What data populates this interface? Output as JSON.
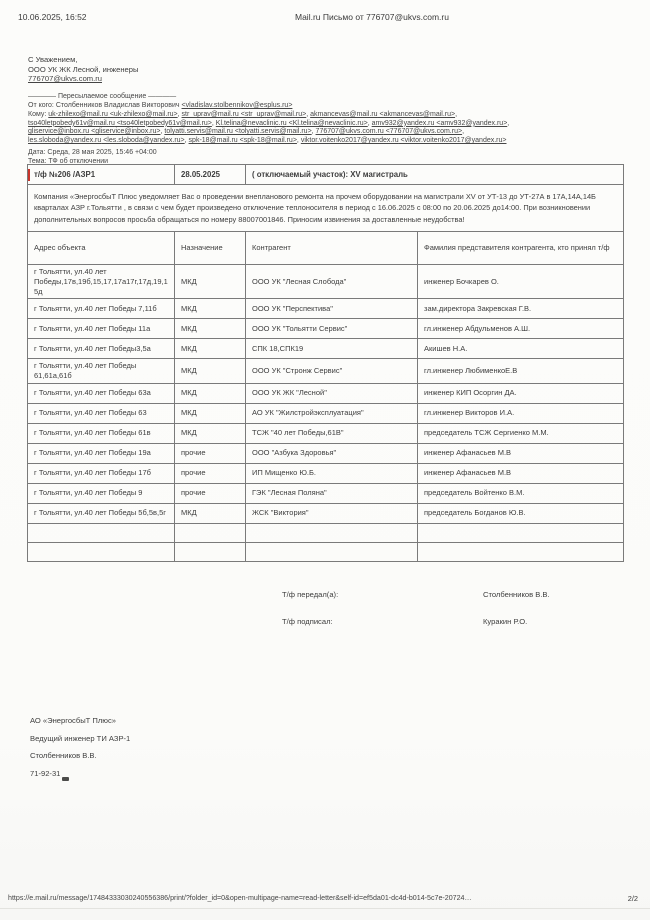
{
  "header": {
    "timestamp": "10.06.2025, 16:52",
    "title": "Mail.ru Письмо от 776707@ukvs.com.ru"
  },
  "sender_block": {
    "line1": "С Уважением,",
    "line2": "ООО УК ЖК Лесной, инженеры",
    "email": "776707@ukvs.com.ru"
  },
  "forward": {
    "divider": "———— Пересылаемое сообщение ————",
    "from_label": "От кого:",
    "from_name": "Столбенников Владислав Викторович",
    "from_email": "<vladislav.stolbennikov@esplus.ru>",
    "to_label": "Кому:",
    "recipients": [
      "uk-zhilexo@mail.ru",
      "str_uprav@mail.ru",
      "akmancevas@mail.ru",
      "tso40letpobedy61v@mail.ru",
      "Kl.telina@nevaclinic.ru",
      "amv932@yandex.ru",
      "gliservice@inbox.ru",
      "tolyatti.servis@mail.ru",
      "776707@ukvs.com.ru",
      "les.sloboda@yandex.ru",
      "spk-18@mail.ru",
      "viktor.voitenko2017@yandex.ru"
    ],
    "date_line": "Дата: Среда, 28 мая 2025, 15:46 +04:00",
    "subject_line": "Тема: ТФ об отключении"
  },
  "table": {
    "tf_number": "т/ф  №206 /АЗР1",
    "tf_date": "28.05.2025",
    "tf_section": "( отключаемый участок): XV магистраль",
    "notice": "Компания «ЭнергосбыТ Плюс уведомляет Вас о проведении  внепланового ремонта на прочем оборудовании  на магистрали XV от УТ-13 до УТ-27А в 17А,14А,14Б кварталах АЗР г.Тольятти , в связи с чем будет произведено отключение теплоносителя  в период с 16.06.2025 с 08:00 по 20.06.2025 до14:00. При возникновении дополнительных вопросов просьба обращаться по номеру 88007001846. Приносим извинения за доставленные неудобства!",
    "columns": [
      "Адрес объекта",
      "Назначение",
      "Контрагент",
      "Фамилия представителя контрагента, кто принял т/ф"
    ],
    "rows": [
      [
        "г Тольятти, ул.40 лет Победы,17в,19б,15,17,17а17г,17д,19,15д",
        "МКД",
        "ООО УК \"Лесная Слобода\"",
        "инженер Бочкарев О."
      ],
      [
        "г Тольятти, ул.40 лет Победы 7,11б",
        "МКД",
        "ООО УК \"Перспектива\"",
        "зам.директора Закревская Г.В."
      ],
      [
        "г Тольятти, ул.40 лет Победы 11а",
        "МКД",
        "ООО УК \"Тольятти Сервис\"",
        "гл.инженер Абдульменов А.Ш."
      ],
      [
        "г Тольятти, ул.40 лет Победы3,5а",
        "МКД",
        "СПК 18,СПК19",
        "Акишев Н.А."
      ],
      [
        "г Тольятти, ул.40 лет Победы 61,61а,61б",
        "МКД",
        "ООО УК \"Стронж Сервис\"",
        "гл.инженер ЛюбименкоЕ.В"
      ],
      [
        "г Тольятти, ул.40 лет Победы 63а",
        "МКД",
        "ООО УК ЖК \"Лесной\"",
        "инженер КИП Осоргин ДА."
      ],
      [
        "г Тольятти, ул.40 лет Победы 63",
        "МКД",
        "АО УК \"Жилстройэксплуатация\"",
        "гл.инженер Викторов И.А."
      ],
      [
        "г Тольятти, ул.40 лет Победы 61в",
        "МКД",
        "ТСЖ \"40 лет Победы,61В\"",
        "председатель ТСЖ Сергиенко М.М."
      ],
      [
        "г Тольятти, ул.40 лет Победы 19а",
        "прочие",
        "ООО \"Азбука Здоровья\"",
        "инженер Афанасьев М.В"
      ],
      [
        "г Тольятти, ул.40 лет Победы 17б",
        "прочие",
        "ИП Мищенко Ю.Б.",
        "инженер Афанасьев М.В"
      ],
      [
        "г Тольятти, ул.40 лет Победы 9",
        "прочие",
        "ГЭК \"Лесная Поляна\"",
        "председатель Войтенко В.М."
      ],
      [
        "г Тольятти, ул.40 лет Победы 5б,5в,5г",
        "МКД",
        "ЖСК \"Виктория\"",
        "председатель Богданов Ю.В."
      ]
    ],
    "empty_row_count": 2
  },
  "sign_rows": {
    "passed_label": "Т/ф передал(а):",
    "passed_name": "Столбенников В.В.",
    "signed_label": "Т/ф подписал:",
    "signed_name": "Куракин Р.О."
  },
  "signature": {
    "lines": [
      "АО «ЭнергосбыТ Плюс»",
      "Ведущий инженер ТИ АЗР-1",
      "Столбенников В.В.",
      "71-92-31"
    ]
  },
  "footer": {
    "url": "https://e.mail.ru/message/17484333030240556386/print/?folder_id=0&open-multipage-name=read-letter&self-id=ef5da01-dc4d-b014-5c7e-20724…",
    "page_number": "2/2"
  },
  "colors": {
    "accent_red_mark": "#c9342b",
    "text": "#3e3e3e",
    "table_border": "#7a7a7a"
  }
}
